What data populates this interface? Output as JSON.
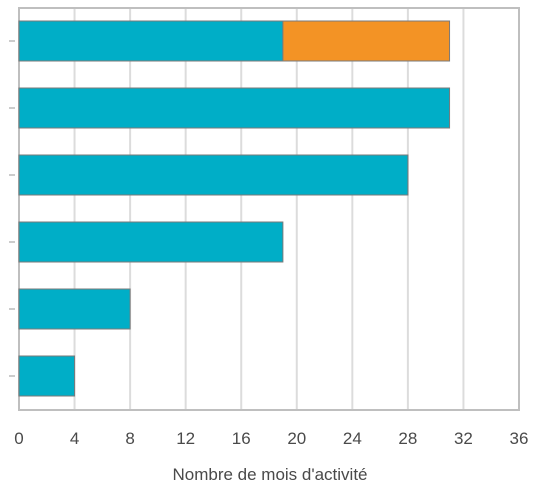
{
  "chart_data": {
    "type": "bar",
    "orientation": "horizontal",
    "stacked": true,
    "categories": [
      "",
      "",
      "",
      "",
      "",
      ""
    ],
    "series": [
      {
        "values": [
          19,
          31,
          28,
          19,
          8,
          4
        ],
        "color": "#00AEC7"
      },
      {
        "values": [
          12,
          0,
          0,
          0,
          0,
          0
        ],
        "color": "#F39325"
      }
    ],
    "xlabel": "Nombre de mois d'activité",
    "ylabel": "",
    "xlim": [
      0,
      36
    ],
    "xticks": [
      "0",
      "4",
      "8",
      "12",
      "16",
      "20",
      "24",
      "28",
      "32",
      "36"
    ],
    "grid": "vertical",
    "legend": "none",
    "colors": {
      "gridline": "#dcdcdc",
      "frame": "#bfbfbf",
      "bar_border": "#7a7a7a"
    }
  }
}
